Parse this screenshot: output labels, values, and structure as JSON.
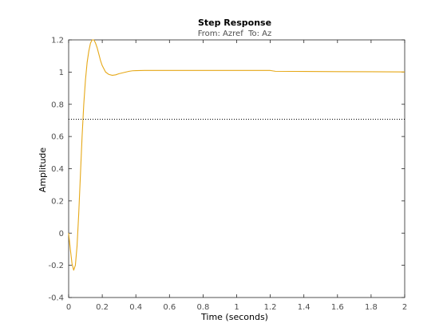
{
  "chart_data": {
    "type": "line",
    "title": "Step Response",
    "subtitle_from_label": "From: Azref",
    "subtitle_to_label": "To: Az",
    "xlabel": "Time (seconds)",
    "ylabel": "Amplitude",
    "xlim": [
      0,
      2
    ],
    "ylim": [
      -0.4,
      1.2
    ],
    "xticks": [
      0,
      0.2,
      0.4,
      0.6,
      0.8,
      1,
      1.2,
      1.4,
      1.6,
      1.8,
      2
    ],
    "xtick_labels": [
      "0",
      "0.2",
      "0.4",
      "0.6",
      "0.8",
      "1",
      "1.2",
      "1.4",
      "1.6",
      "1.8",
      "2"
    ],
    "yticks": [
      -0.4,
      -0.2,
      0,
      0.2,
      0.4,
      0.6,
      0.8,
      1,
      1.2
    ],
    "ytick_labels": [
      "-0.4",
      "-0.2",
      "0",
      "0.2",
      "0.4",
      "0.6",
      "0.8",
      "1",
      "1.2"
    ],
    "grid": false,
    "series": [
      {
        "color": "#e6a817",
        "x": [
          0,
          0.01,
          0.02,
          0.03,
          0.04,
          0.05,
          0.06,
          0.07,
          0.08,
          0.09,
          0.1,
          0.11,
          0.12,
          0.13,
          0.14,
          0.15,
          0.16,
          0.17,
          0.18,
          0.19,
          0.2,
          0.22,
          0.24,
          0.26,
          0.28,
          0.3,
          0.32,
          0.34,
          0.36,
          0.38,
          0.4,
          0.45,
          0.5,
          0.6,
          0.8,
          1.0,
          1.2,
          1.23,
          1.4,
          1.6,
          1.8,
          2.0
        ],
        "y": [
          0,
          -0.1,
          -0.19,
          -0.23,
          -0.2,
          -0.08,
          0.12,
          0.36,
          0.6,
          0.8,
          0.95,
          1.06,
          1.13,
          1.18,
          1.2,
          1.2,
          1.18,
          1.15,
          1.11,
          1.07,
          1.04,
          1.0,
          0.985,
          0.98,
          0.983,
          0.99,
          0.995,
          1.0,
          1.005,
          1.008,
          1.009,
          1.01,
          1.01,
          1.01,
          1.01,
          1.01,
          1.01,
          1.005,
          1.004,
          1.003,
          1.002,
          1.001
        ]
      },
      {
        "color": "#000000",
        "style": "dotted",
        "x": [
          0,
          2
        ],
        "y": [
          0.707,
          0.707
        ]
      }
    ]
  }
}
